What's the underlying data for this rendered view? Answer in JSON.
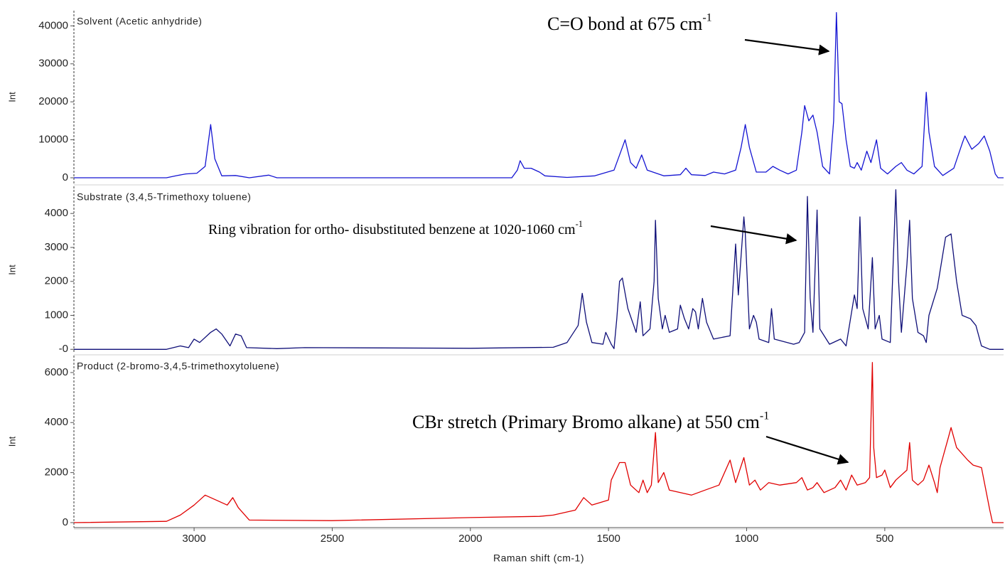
{
  "chart_data": [
    {
      "type": "line",
      "y_label": "Int",
      "xlim": [
        3435,
        70
      ],
      "ylim": [
        -1500,
        44000
      ],
      "yticks": [
        0,
        10000,
        20000,
        30000,
        40000
      ],
      "annotations": [
        {
          "text": "C=O bond at 675 cm",
          "superscript": "-1"
        }
      ],
      "x": [
        3435,
        3100,
        3060,
        3030,
        2990,
        2960,
        2940,
        2925,
        2900,
        2850,
        2800,
        2730,
        2700,
        1850,
        1830,
        1820,
        1805,
        1780,
        1750,
        1730,
        1650,
        1550,
        1480,
        1450,
        1440,
        1420,
        1400,
        1380,
        1360,
        1300,
        1240,
        1220,
        1200,
        1150,
        1120,
        1080,
        1040,
        1020,
        1005,
        990,
        965,
        930,
        905,
        880,
        850,
        820,
        800,
        790,
        775,
        760,
        745,
        725,
        700,
        685,
        675,
        665,
        655,
        640,
        625,
        610,
        600,
        585,
        565,
        550,
        530,
        515,
        490,
        460,
        440,
        420,
        395,
        365,
        350,
        340,
        320,
        290,
        250,
        220,
        210,
        185,
        160,
        140,
        120,
        100,
        90,
        70
      ],
      "series": [
        {
          "name": "Solvent (Acetic anhydride)",
          "color": "#1414d2",
          "values": [
            0,
            0,
            600,
            1000,
            1200,
            3000,
            14000,
            5000,
            500,
            600,
            0,
            700,
            0,
            0,
            2000,
            4500,
            2500,
            2500,
            1500,
            500,
            100,
            500,
            2000,
            8000,
            10000,
            4000,
            2500,
            6000,
            2000,
            500,
            800,
            2500,
            800,
            600,
            1500,
            1000,
            2000,
            8000,
            14000,
            8000,
            1500,
            1500,
            3000,
            2000,
            1000,
            2000,
            12000,
            19000,
            15000,
            16500,
            12000,
            3000,
            1000,
            15000,
            43500,
            20000,
            19500,
            10000,
            3000,
            2500,
            4000,
            2000,
            7000,
            4000,
            10000,
            2500,
            1000,
            3000,
            4000,
            2000,
            1000,
            3000,
            22500,
            12000,
            3000,
            600,
            2500,
            9000,
            11000,
            7500,
            9000,
            11000,
            7000,
            1000,
            0,
            0
          ]
        }
      ]
    },
    {
      "type": "line",
      "y_label": "Int",
      "xlim": [
        3435,
        70
      ],
      "ylim": [
        -120,
        4800
      ],
      "yticks": [
        {
          "value": 0,
          "label": "-0"
        },
        1000,
        2000,
        3000,
        4000
      ],
      "annotations": [
        {
          "text": "Ring vibration for ortho- disubstituted benzene at 1020-1060 cm",
          "superscript": "-1"
        }
      ],
      "x": [
        3435,
        3100,
        3050,
        3020,
        3000,
        2980,
        2940,
        2920,
        2900,
        2870,
        2850,
        2830,
        2810,
        2700,
        2600,
        2000,
        1700,
        1650,
        1610,
        1595,
        1580,
        1560,
        1520,
        1510,
        1490,
        1480,
        1470,
        1460,
        1450,
        1430,
        1400,
        1385,
        1375,
        1350,
        1335,
        1330,
        1320,
        1305,
        1295,
        1280,
        1250,
        1240,
        1225,
        1210,
        1195,
        1185,
        1175,
        1160,
        1145,
        1120,
        1060,
        1040,
        1030,
        1010,
        1005,
        990,
        975,
        965,
        955,
        920,
        910,
        900,
        830,
        810,
        790,
        780,
        770,
        760,
        745,
        735,
        700,
        660,
        640,
        610,
        600,
        590,
        580,
        560,
        545,
        535,
        520,
        510,
        480,
        460,
        450,
        440,
        420,
        410,
        400,
        380,
        360,
        350,
        340,
        310,
        280,
        260,
        240,
        220,
        190,
        170,
        150,
        120,
        70
      ],
      "series": [
        {
          "name": "Substrate (3,4,5-Trimethoxy toluene)",
          "color": "#0f0f78",
          "values": [
            0,
            0,
            100,
            50,
            300,
            200,
            500,
            600,
            450,
            100,
            450,
            400,
            50,
            20,
            50,
            30,
            60,
            200,
            700,
            1650,
            800,
            200,
            150,
            500,
            150,
            20,
            900,
            2000,
            2100,
            1200,
            500,
            1400,
            400,
            600,
            2000,
            3800,
            1500,
            600,
            1000,
            500,
            600,
            1300,
            900,
            600,
            1200,
            1100,
            600,
            1500,
            800,
            300,
            400,
            3100,
            1600,
            3900,
            3400,
            600,
            1000,
            800,
            300,
            200,
            1200,
            300,
            150,
            200,
            500,
            4500,
            1500,
            500,
            4100,
            600,
            150,
            300,
            100,
            1600,
            1200,
            3900,
            1200,
            600,
            2700,
            600,
            1000,
            300,
            200,
            4700,
            2000,
            500,
            2500,
            3800,
            1500,
            500,
            400,
            200,
            1000,
            1800,
            3300,
            3400,
            2000,
            1000,
            900,
            700,
            100,
            0,
            0
          ]
        }
      ]
    },
    {
      "type": "line",
      "y_label": "Int",
      "x_label": "Raman shift (cm-1)",
      "xlim": [
        3435,
        70
      ],
      "ylim": [
        -200,
        6680
      ],
      "yticks": [
        0,
        2000,
        4000,
        6000
      ],
      "xticks": [
        3000,
        2500,
        2000,
        1500,
        1000,
        500
      ],
      "annotations": [
        {
          "text": "CBr stretch (Primary Bromo alkane) at 550 cm",
          "superscript": "-1"
        }
      ],
      "x": [
        3435,
        3100,
        3050,
        3000,
        2960,
        2920,
        2880,
        2860,
        2840,
        2800,
        2500,
        2000,
        1750,
        1700,
        1620,
        1590,
        1560,
        1500,
        1490,
        1460,
        1440,
        1420,
        1390,
        1375,
        1360,
        1345,
        1330,
        1320,
        1300,
        1280,
        1200,
        1150,
        1100,
        1060,
        1040,
        1010,
        990,
        970,
        950,
        920,
        880,
        820,
        800,
        780,
        760,
        745,
        720,
        680,
        660,
        640,
        620,
        600,
        570,
        555,
        545,
        540,
        530,
        510,
        500,
        480,
        460,
        420,
        410,
        400,
        380,
        360,
        340,
        320,
        310,
        300,
        290,
        270,
        260,
        240,
        200,
        180,
        150,
        120,
        110,
        70
      ],
      "series": [
        {
          "name": "Product (2-bromo-3,4,5-trimethoxytoluene)",
          "color": "#e00000",
          "values": [
            0,
            50,
            300,
            700,
            1100,
            900,
            700,
            1000,
            600,
            100,
            80,
            200,
            250,
            300,
            500,
            1000,
            700,
            900,
            1700,
            2400,
            2400,
            1500,
            1200,
            1700,
            1200,
            1500,
            3600,
            1600,
            2000,
            1300,
            1100,
            1300,
            1500,
            2500,
            1600,
            2600,
            1500,
            1700,
            1300,
            1600,
            1500,
            1600,
            1800,
            1300,
            1400,
            1600,
            1200,
            1400,
            1700,
            1300,
            1900,
            1500,
            1600,
            1800,
            6400,
            3000,
            1800,
            1900,
            2100,
            1400,
            1700,
            2100,
            3200,
            1700,
            1500,
            1700,
            2300,
            1600,
            1200,
            2200,
            2600,
            3400,
            3800,
            3000,
            2500,
            2300,
            2200,
            500,
            0,
            0
          ]
        }
      ]
    }
  ]
}
